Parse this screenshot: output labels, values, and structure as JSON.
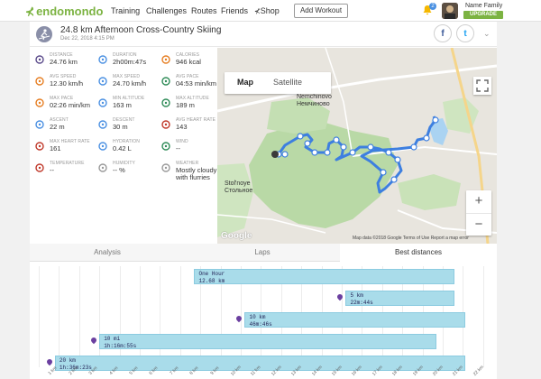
{
  "header": {
    "logo_text": "endomondo",
    "nav": [
      "Training",
      "Challenges",
      "Routes",
      "Friends",
      "Shop"
    ],
    "add_workout": "Add Workout",
    "notifications": "2",
    "user_name": "Name Family",
    "upgrade": "UPGRADE"
  },
  "workout": {
    "title": "24.8 km Afternoon Cross-Country Skiing",
    "date": "Dec 22, 2018 4:15 PM"
  },
  "share": {
    "facebook": "f",
    "twitter": "t"
  },
  "stats": [
    {
      "label": "DISTANCE",
      "value": "24.76 km",
      "icon": "distance-icon",
      "color": "#5a4a8a"
    },
    {
      "label": "DURATION",
      "value": "2h00m:47s",
      "icon": "stopwatch-icon",
      "color": "#4a90e2"
    },
    {
      "label": "CALORIES",
      "value": "946 kcal",
      "icon": "flame-icon",
      "color": "#e67e22"
    },
    {
      "label": "AVG SPEED",
      "value": "12.30 km/h",
      "icon": "speedometer-icon",
      "color": "#e67e22"
    },
    {
      "label": "MAX SPEED",
      "value": "24.70 km/h",
      "icon": "speedometer-icon",
      "color": "#4a90e2"
    },
    {
      "label": "AVG PACE",
      "value": "04:53 min/km",
      "icon": "pace-icon",
      "color": "#2e8b57"
    },
    {
      "label": "MAX PACE",
      "value": "02:26 min/km",
      "icon": "pace-icon",
      "color": "#e67e22"
    },
    {
      "label": "MIN ALTITUDE",
      "value": "163 m",
      "icon": "mountain-icon",
      "color": "#4a90e2"
    },
    {
      "label": "MAX ALTITUDE",
      "value": "189 m",
      "icon": "mountain-icon",
      "color": "#2e8b57"
    },
    {
      "label": "ASCENT",
      "value": "22 m",
      "icon": "ascent-icon",
      "color": "#4a90e2"
    },
    {
      "label": "DESCENT",
      "value": "30 m",
      "icon": "descent-icon",
      "color": "#4a90e2"
    },
    {
      "label": "AVG HEART RATE",
      "value": "143",
      "icon": "heart-icon",
      "color": "#c0392b"
    },
    {
      "label": "MAX HEART RATE",
      "value": "161",
      "icon": "heart-icon",
      "color": "#c0392b"
    },
    {
      "label": "HYDRATION",
      "value": "0.42 L",
      "icon": "drop-icon",
      "color": "#4a90e2"
    },
    {
      "label": "WIND",
      "value": "--",
      "icon": "wind-icon",
      "color": "#2e8b57"
    },
    {
      "label": "TEMPERATURE",
      "value": "--",
      "icon": "thermometer-icon",
      "color": "#c0392b"
    },
    {
      "label": "HUMIDITY",
      "value": "-- %",
      "icon": "humidity-icon",
      "color": "#999999"
    },
    {
      "label": "WEATHER",
      "value": "Mostly cloudy with flurries",
      "icon": "weather-icon",
      "color": "#999999"
    }
  ],
  "map": {
    "map_btn": "Map",
    "satellite_btn": "Satellite",
    "zoom_in": "+",
    "zoom_out": "−",
    "google": "Google",
    "footer": "Map data ©2018 Google   Terms of Use   Report a map error",
    "place1": "Nemchinovo",
    "place1b": "Немчиново",
    "place2": "Stol'noye",
    "place2b": "Стольное"
  },
  "tabs": [
    {
      "label": "Analysis",
      "active": false
    },
    {
      "label": "Laps",
      "active": false
    },
    {
      "label": "Best distances",
      "active": true
    }
  ],
  "best_distances": [
    {
      "name": "One Hour",
      "value": "12.68 km"
    },
    {
      "name": "5 km",
      "value": "22m:44s"
    },
    {
      "name": "10 km",
      "value": "46m:46s"
    },
    {
      "name": "10 mi",
      "value": "1h:16m:55s"
    },
    {
      "name": "20 km",
      "value": "1h:36m:23s"
    }
  ],
  "km_ticks": [
    "1 km",
    "2 km",
    "3 km",
    "4 km",
    "5 km",
    "6 km",
    "7 km",
    "8 km",
    "9 km",
    "10 km",
    "11 km",
    "12 km",
    "13 km",
    "14 km",
    "15 km",
    "16 km",
    "17 km",
    "18 km",
    "19 km",
    "20 km",
    "21 km",
    "22 km"
  ]
}
